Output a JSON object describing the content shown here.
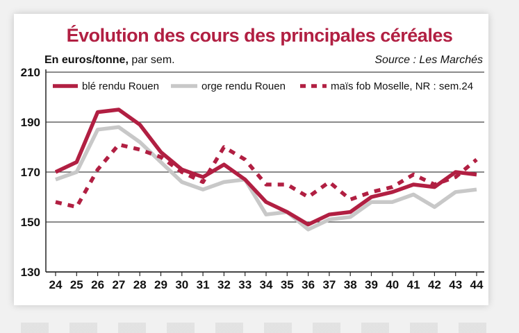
{
  "colors": {
    "title": "#b11f42",
    "ble": "#b11f42",
    "orge": "#c8c8c8",
    "mais": "#b11f42",
    "grid": "#444444"
  },
  "chart_data": {
    "type": "line",
    "title": "Évolution des cours des principales céréales",
    "unit_bold": "En euros/tonne,",
    "unit_rest": " par sem.",
    "source": "Source : Les Marchés",
    "x": [
      "24",
      "25",
      "26",
      "27",
      "28",
      "29",
      "30",
      "31",
      "32",
      "33",
      "34",
      "35",
      "36",
      "37",
      "38",
      "39",
      "40",
      "41",
      "42",
      "43",
      "44"
    ],
    "ylim": [
      130,
      210
    ],
    "yticks": [
      "130",
      "150",
      "170",
      "190",
      "210"
    ],
    "grid": true,
    "legend_position": "top",
    "series": [
      {
        "name": "blé rendu Rouen",
        "style": "solid-thick",
        "values": [
          170,
          174,
          194,
          195,
          189,
          178,
          171,
          168,
          173,
          167,
          158,
          154,
          149,
          153,
          154,
          160,
          162,
          165,
          164,
          170,
          169
        ]
      },
      {
        "name": "orge rendu Rouen",
        "style": "solid-gray",
        "values": [
          167,
          170,
          187,
          188,
          182,
          174,
          166,
          163,
          166,
          167,
          153,
          154,
          147,
          151,
          152,
          158,
          158,
          161,
          156,
          162,
          163
        ]
      },
      {
        "name": "maïs fob Moselle, NR : sem.24",
        "style": "dashed",
        "values": [
          158,
          156,
          171,
          181,
          179,
          176,
          170,
          166,
          180,
          175,
          165,
          165,
          160,
          166,
          159,
          162,
          164,
          169,
          165,
          168,
          175
        ]
      }
    ]
  }
}
